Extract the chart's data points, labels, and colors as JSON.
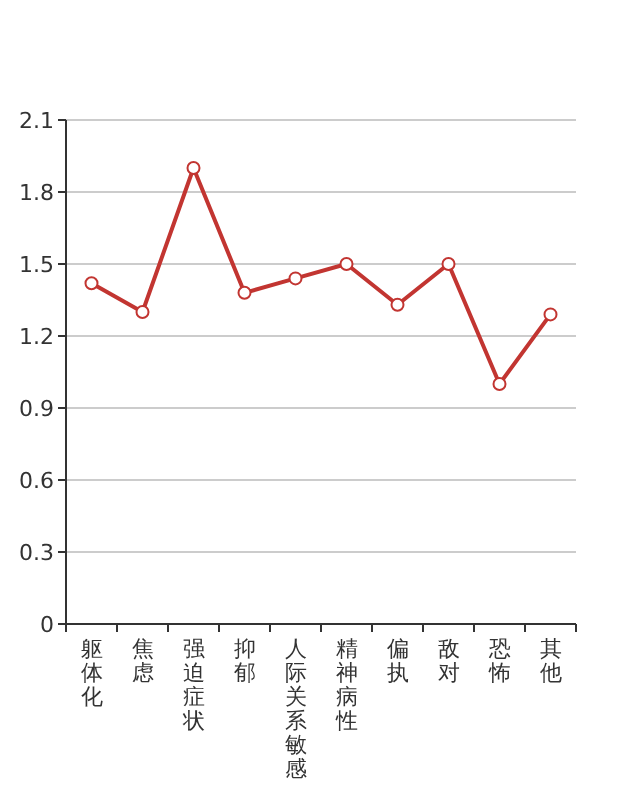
{
  "chart_data": {
    "type": "line",
    "categories": [
      "躯体化",
      "焦虑",
      "强迫症状",
      "抑郁",
      "人际关系敏感",
      "精神病性",
      "偏执",
      "敌对",
      "恐怖",
      "其他"
    ],
    "series": [
      {
        "color": "#c23531",
        "values": [
          1.42,
          1.3,
          1.9,
          1.38,
          1.44,
          1.5,
          1.33,
          1.5,
          1.0,
          1.29
        ]
      }
    ],
    "ylim": [
      0,
      2.1
    ],
    "yticks": [
      0,
      0.3,
      0.6,
      0.9,
      1.2,
      1.5,
      1.8,
      2.1
    ],
    "grid": "y",
    "marker": "circle",
    "line_style": "solid"
  }
}
